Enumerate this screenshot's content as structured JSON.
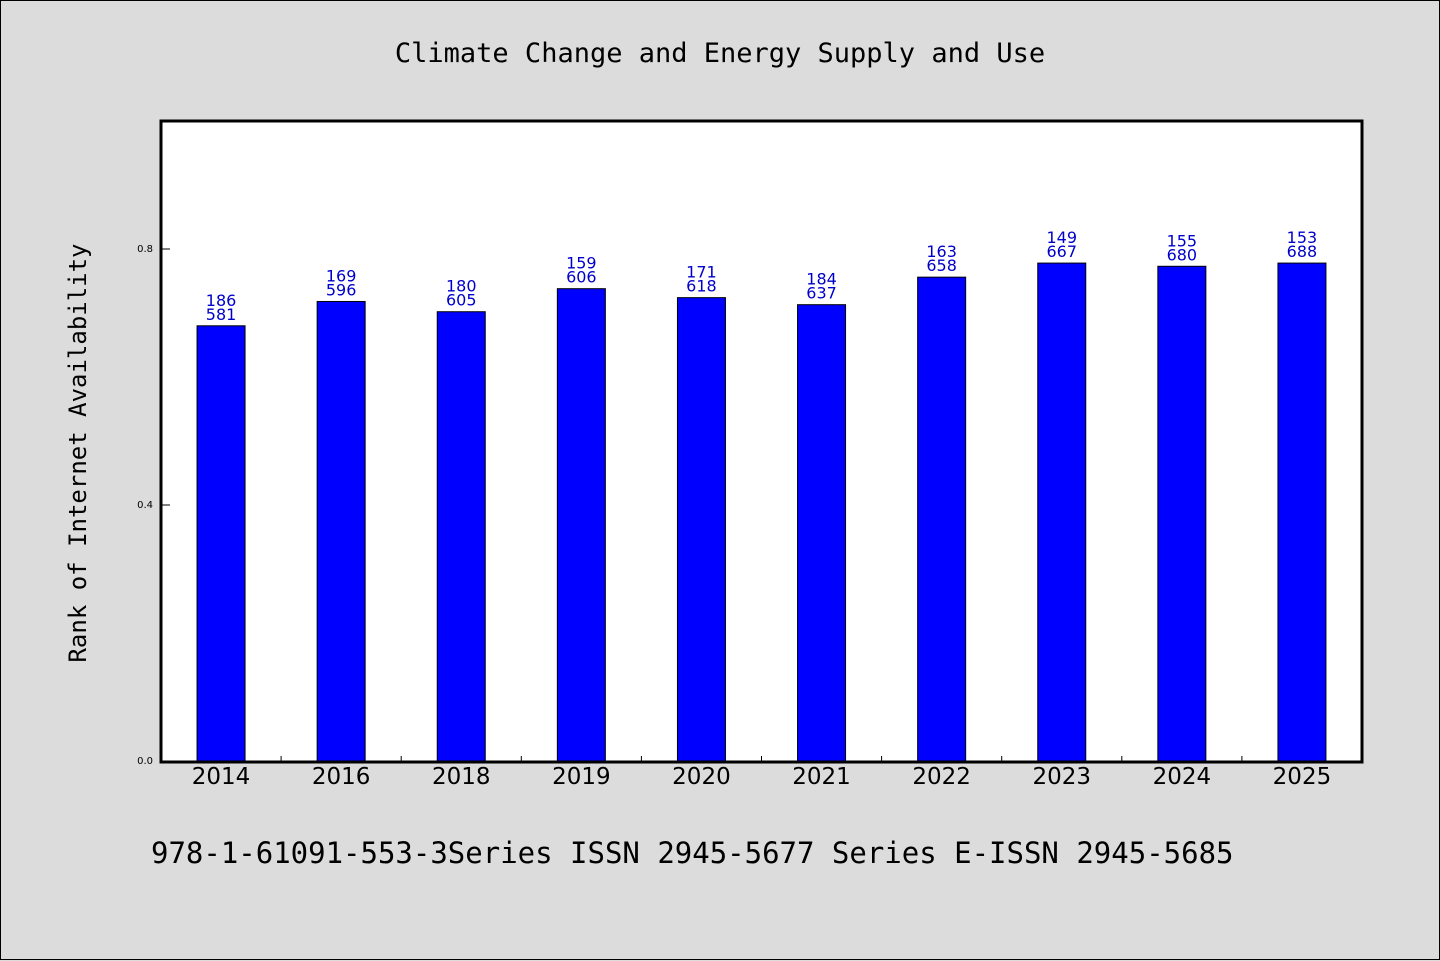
{
  "chart_data": {
    "type": "bar",
    "title": "Climate Change and Energy Supply and Use",
    "xlabel": "",
    "ylabel": "Rank of Internet Availability",
    "categories": [
      "2014",
      "2016",
      "2018",
      "2019",
      "2020",
      "2021",
      "2022",
      "2023",
      "2024",
      "2025"
    ],
    "values": [
      0.68,
      0.718,
      0.702,
      0.738,
      0.724,
      0.713,
      0.756,
      0.778,
      0.773,
      0.778
    ],
    "data_labels": [
      [
        "186",
        "581"
      ],
      [
        "169",
        "596"
      ],
      [
        "180",
        "605"
      ],
      [
        "159",
        "606"
      ],
      [
        "171",
        "618"
      ],
      [
        "184",
        "637"
      ],
      [
        "163",
        "658"
      ],
      [
        "149",
        "667"
      ],
      [
        "155",
        "680"
      ],
      [
        "153",
        "688"
      ]
    ],
    "ylim": [
      0,
      1.0
    ],
    "yticks": [
      0.0,
      0.4,
      0.8
    ],
    "ytick_labels": [
      "0.0",
      "0.4",
      "0.8"
    ],
    "grid": false,
    "legend": "none",
    "colors": {
      "bar": "#0000ff",
      "bar_edge": "#000000",
      "label": "#0000cc",
      "background": "#dcdcdc",
      "plot_background": "#ffffff"
    }
  },
  "footer_text": "978-1-61091-553-3Series ISSN 2945-5677 Series E-ISSN 2945-5685"
}
